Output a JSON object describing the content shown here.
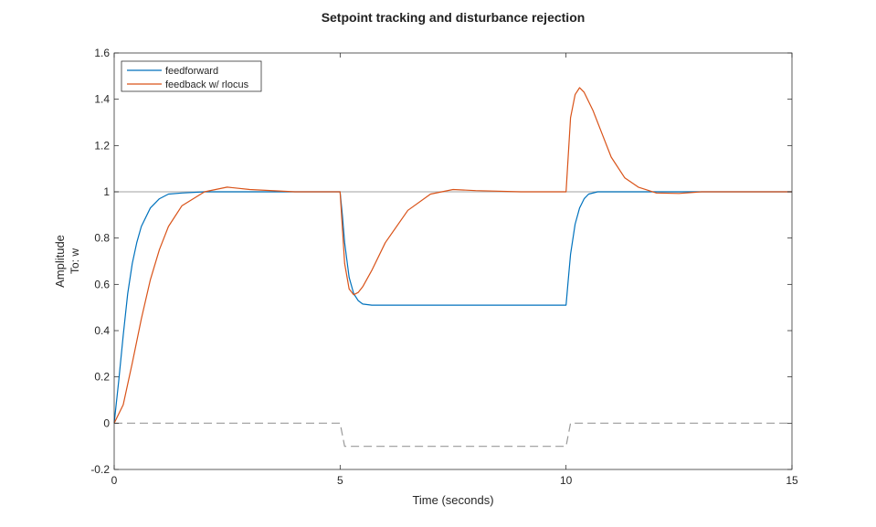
{
  "chart_data": {
    "type": "line",
    "title": "Setpoint tracking and disturbance rejection",
    "xlabel": "Time (seconds)",
    "ylabel": "Amplitude",
    "ylabel2": "To: w",
    "xlim": [
      0,
      15
    ],
    "ylim": [
      -0.2,
      1.6
    ],
    "xticks": [
      0,
      5,
      10,
      15
    ],
    "yticks": [
      -0.2,
      0,
      0.2,
      0.4,
      0.6,
      0.8,
      1,
      1.2,
      1.4,
      1.6
    ],
    "x_tick_labels": [
      "0",
      "5",
      "10",
      "15"
    ],
    "y_tick_labels": [
      "-0.2",
      "0",
      "0.2",
      "0.4",
      "0.6",
      "0.8",
      "1",
      "1.2",
      "1.4",
      "1.6"
    ],
    "grid": false,
    "legend_position": "top-left",
    "series": [
      {
        "name": "feedforward",
        "color": "#0072BD",
        "x": [
          0,
          0.1,
          0.2,
          0.3,
          0.4,
          0.5,
          0.6,
          0.8,
          1.0,
          1.2,
          1.5,
          2.0,
          3.0,
          4.0,
          5.0,
          5.05,
          5.1,
          5.2,
          5.3,
          5.4,
          5.5,
          5.7,
          6.0,
          7.0,
          8.0,
          9.0,
          10.0,
          10.05,
          10.1,
          10.2,
          10.3,
          10.4,
          10.5,
          10.7,
          11.0,
          12.0,
          13.0,
          14.0,
          15.0
        ],
        "y": [
          0,
          0.18,
          0.38,
          0.56,
          0.69,
          0.78,
          0.85,
          0.93,
          0.97,
          0.99,
          0.995,
          1.0,
          1.0,
          1.0,
          1.0,
          0.9,
          0.78,
          0.63,
          0.56,
          0.53,
          0.515,
          0.51,
          0.51,
          0.51,
          0.51,
          0.51,
          0.51,
          0.62,
          0.73,
          0.86,
          0.93,
          0.97,
          0.99,
          1.0,
          1.0,
          1.0,
          1.0,
          1.0,
          1.0
        ]
      },
      {
        "name": "feedback w/ rlocus",
        "color": "#D95319",
        "x": [
          0,
          0.2,
          0.4,
          0.6,
          0.8,
          1.0,
          1.2,
          1.5,
          2.0,
          2.5,
          3.0,
          4.0,
          5.0,
          5.1,
          5.2,
          5.3,
          5.4,
          5.5,
          5.7,
          6.0,
          6.5,
          7.0,
          7.5,
          8.0,
          9.0,
          10.0,
          10.1,
          10.2,
          10.3,
          10.4,
          10.6,
          10.8,
          11.0,
          11.3,
          11.6,
          12.0,
          12.5,
          13.0,
          14.0,
          15.0
        ],
        "y": [
          0,
          0.08,
          0.26,
          0.45,
          0.62,
          0.75,
          0.85,
          0.94,
          1.0,
          1.02,
          1.01,
          1.0,
          1.0,
          0.69,
          0.58,
          0.555,
          0.565,
          0.59,
          0.66,
          0.78,
          0.92,
          0.99,
          1.01,
          1.005,
          1.0,
          1.0,
          1.32,
          1.42,
          1.45,
          1.43,
          1.35,
          1.25,
          1.15,
          1.06,
          1.02,
          0.995,
          0.993,
          1.0,
          1.0,
          1.0
        ]
      },
      {
        "color": "#9a9a9a",
        "dash": "dashed",
        "x": [
          0,
          5.0,
          5.1,
          10.0,
          10.1,
          15.0
        ],
        "y": [
          0,
          0,
          -0.1,
          -0.1,
          0,
          0
        ]
      },
      {
        "color": "#b5b5b5",
        "x": [
          0,
          15
        ],
        "y": [
          1,
          1
        ]
      }
    ]
  }
}
